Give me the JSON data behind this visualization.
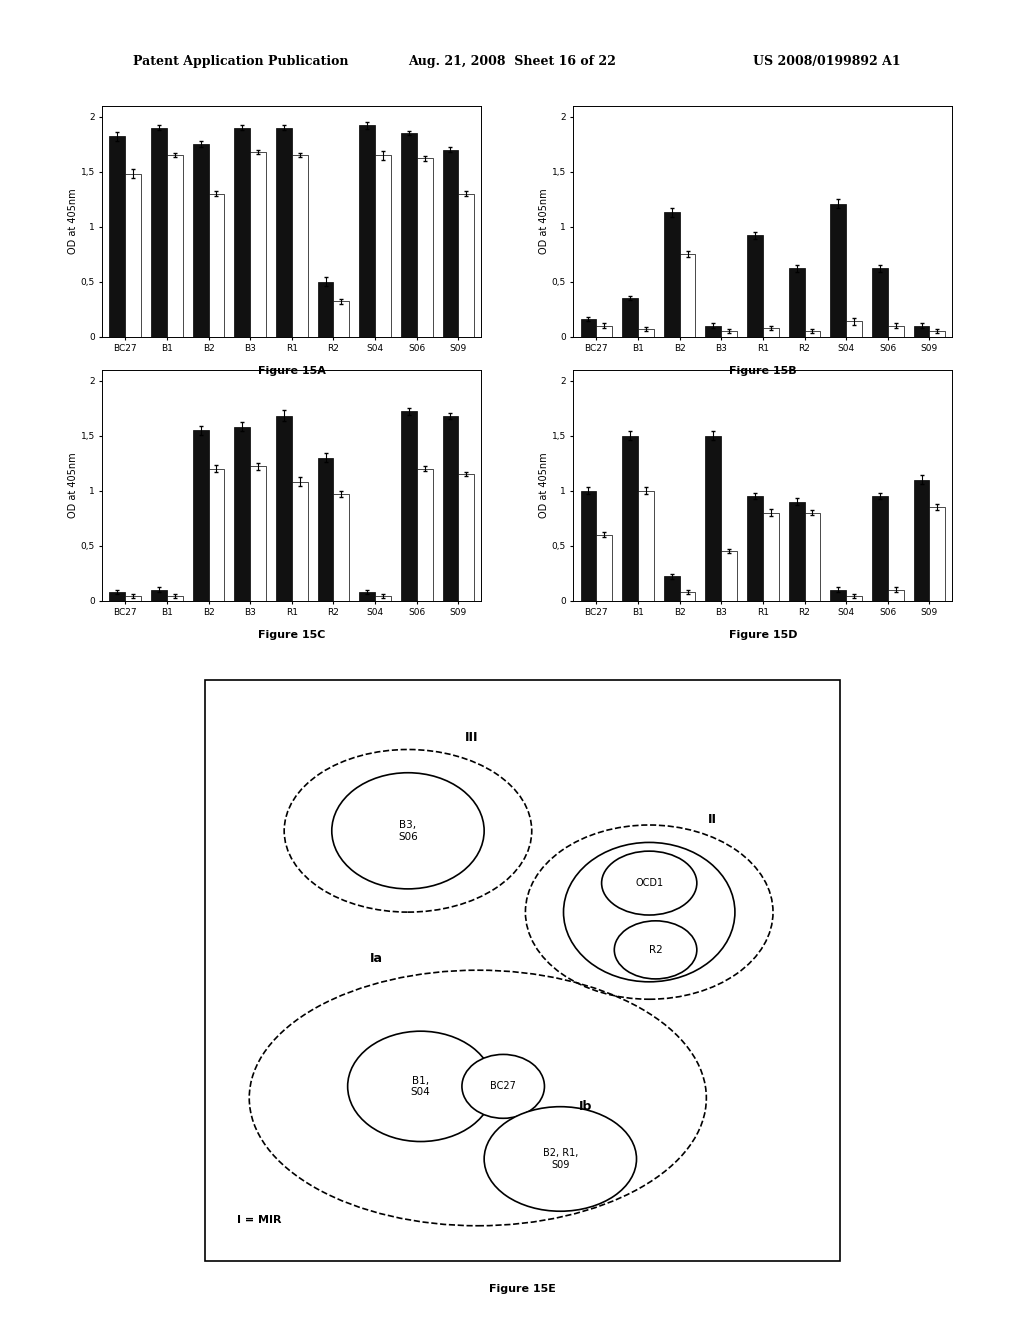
{
  "header_left": "Patent Application Publication",
  "header_mid": "Aug. 21, 2008  Sheet 16 of 22",
  "header_right": "US 2008/0199892 A1",
  "categories": [
    "BC27",
    "B1",
    "B2",
    "B3",
    "R1",
    "R2",
    "S04",
    "S06",
    "S09"
  ],
  "figA": {
    "title": "Figure 15A",
    "black_bars": [
      1.82,
      1.9,
      1.75,
      1.9,
      1.9,
      0.5,
      1.92,
      1.85,
      1.7
    ],
    "white_bars": [
      1.48,
      1.65,
      1.3,
      1.68,
      1.65,
      0.32,
      1.65,
      1.62,
      1.3
    ],
    "black_err": [
      0.04,
      0.02,
      0.03,
      0.02,
      0.02,
      0.04,
      0.03,
      0.02,
      0.02
    ],
    "white_err": [
      0.04,
      0.02,
      0.02,
      0.02,
      0.02,
      0.02,
      0.04,
      0.02,
      0.02
    ],
    "ylabel": "OD at 405nm",
    "ylim": [
      0,
      2.1
    ],
    "yticks": [
      0,
      0.5,
      1,
      1.5,
      2
    ],
    "yticklabels": [
      "0",
      "0,5",
      "1",
      "1,5",
      "2"
    ]
  },
  "figB": {
    "title": "Figure 15B",
    "black_bars": [
      0.16,
      0.35,
      1.13,
      0.1,
      0.92,
      0.62,
      1.21,
      0.62,
      0.1
    ],
    "white_bars": [
      0.1,
      0.07,
      0.75,
      0.05,
      0.08,
      0.05,
      0.14,
      0.1,
      0.05
    ],
    "black_err": [
      0.02,
      0.02,
      0.04,
      0.02,
      0.03,
      0.03,
      0.04,
      0.03,
      0.02
    ],
    "white_err": [
      0.02,
      0.02,
      0.03,
      0.02,
      0.02,
      0.02,
      0.03,
      0.02,
      0.02
    ],
    "ylabel": "OD at 405nm",
    "ylim": [
      0,
      2.1
    ],
    "yticks": [
      0,
      0.5,
      1,
      1.5,
      2
    ],
    "yticklabels": [
      "0",
      "0,5",
      "1",
      "1,5",
      "2"
    ]
  },
  "figC": {
    "title": "Figure 15C",
    "black_bars": [
      0.08,
      0.1,
      1.55,
      1.58,
      1.68,
      1.3,
      0.08,
      1.72,
      1.68
    ],
    "white_bars": [
      0.04,
      0.04,
      1.2,
      1.22,
      1.08,
      0.97,
      0.04,
      1.2,
      1.15
    ],
    "black_err": [
      0.02,
      0.02,
      0.04,
      0.04,
      0.05,
      0.04,
      0.02,
      0.03,
      0.03
    ],
    "white_err": [
      0.02,
      0.02,
      0.03,
      0.03,
      0.04,
      0.03,
      0.02,
      0.02,
      0.02
    ],
    "ylabel": "OD at 405nm",
    "ylim": [
      0,
      2.1
    ],
    "yticks": [
      0,
      0.5,
      1,
      1.5,
      2
    ],
    "yticklabels": [
      "0",
      "0,5",
      "1",
      "1,5",
      "2"
    ]
  },
  "figD": {
    "title": "Figure 15D",
    "black_bars": [
      1.0,
      1.5,
      0.22,
      1.5,
      0.95,
      0.9,
      0.1,
      0.95,
      1.1
    ],
    "white_bars": [
      0.6,
      1.0,
      0.08,
      0.45,
      0.8,
      0.8,
      0.04,
      0.1,
      0.85
    ],
    "black_err": [
      0.03,
      0.04,
      0.02,
      0.04,
      0.03,
      0.03,
      0.02,
      0.03,
      0.04
    ],
    "white_err": [
      0.02,
      0.03,
      0.02,
      0.02,
      0.03,
      0.02,
      0.02,
      0.02,
      0.03
    ],
    "ylabel": "OD at 405nm",
    "ylim": [
      0,
      2.1
    ],
    "yticks": [
      0,
      0.5,
      1,
      1.5,
      2
    ],
    "yticklabels": [
      "0",
      "0,5",
      "1",
      "1,5",
      "2"
    ]
  },
  "figE": {
    "title": "Figure 15E"
  },
  "bar_black": "#111111",
  "bar_white": "#ffffff",
  "bar_edge": "#000000"
}
